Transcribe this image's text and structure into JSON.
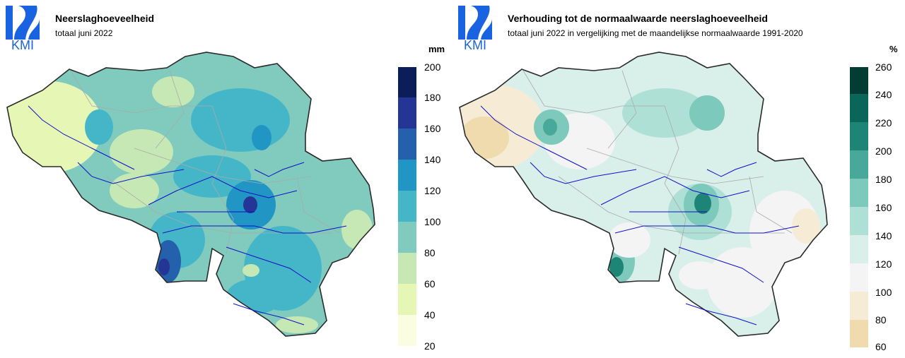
{
  "logo": {
    "text": "KMI",
    "color": "#1a63e0"
  },
  "left_panel": {
    "title": "Neerslaghoeveelheid",
    "subtitle": "totaal juni 2022",
    "unit": "mm",
    "legend_ticks": [
      "20",
      "40",
      "60",
      "80",
      "100",
      "120",
      "140",
      "160",
      "180",
      "200"
    ],
    "legend_colors": [
      "#fbfde0",
      "#e5f6b5",
      "#c6e8b4",
      "#80cbbe",
      "#45b6c8",
      "#2196c4",
      "#2460ab",
      "#253595",
      "#0b1e5a"
    ]
  },
  "right_panel": {
    "title": "Verhouding tot de normaalwaarde neerslaghoeveelheid",
    "subtitle": "totaal juni 2022 in vergelijking met de maandelijkse normaalwaarde 1991-2020",
    "unit": "%",
    "legend_ticks": [
      "60",
      "80",
      "100",
      "120",
      "140",
      "160",
      "180",
      "200",
      "220",
      "240",
      "260"
    ],
    "legend_colors": [
      "#efdbae",
      "#f6ecd6",
      "#f3f4f3",
      "#d9efea",
      "#afe0d6",
      "#7dc9bb",
      "#48a99a",
      "#1e8475",
      "#0a6659",
      "#023c33"
    ]
  }
}
